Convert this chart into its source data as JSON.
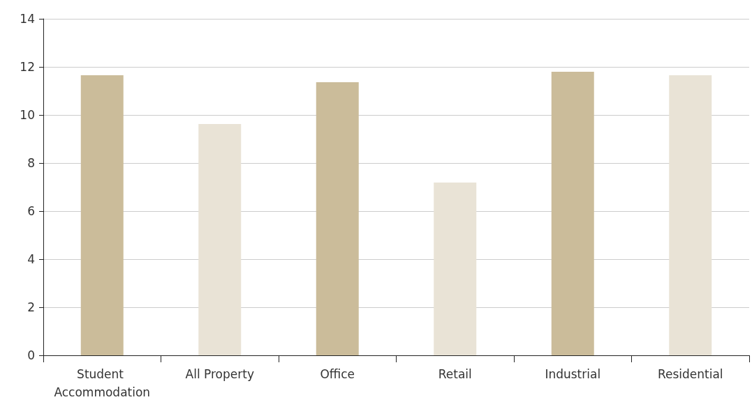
{
  "chart_data": {
    "type": "bar",
    "categories": [
      "Student Accommodation",
      "All Property",
      "Office",
      "Retail",
      "Industrial",
      "Residential"
    ],
    "values": [
      11.65,
      9.62,
      11.36,
      7.19,
      11.8,
      11.65
    ],
    "colors": [
      "#cbbc9a",
      "#e9e3d6",
      "#cbbc9a",
      "#e9e3d6",
      "#cbbc9a",
      "#e9e3d6"
    ],
    "ylim": [
      0,
      14
    ],
    "yticks": [
      0,
      2,
      4,
      6,
      8,
      10,
      12,
      14
    ],
    "grid": "y"
  }
}
